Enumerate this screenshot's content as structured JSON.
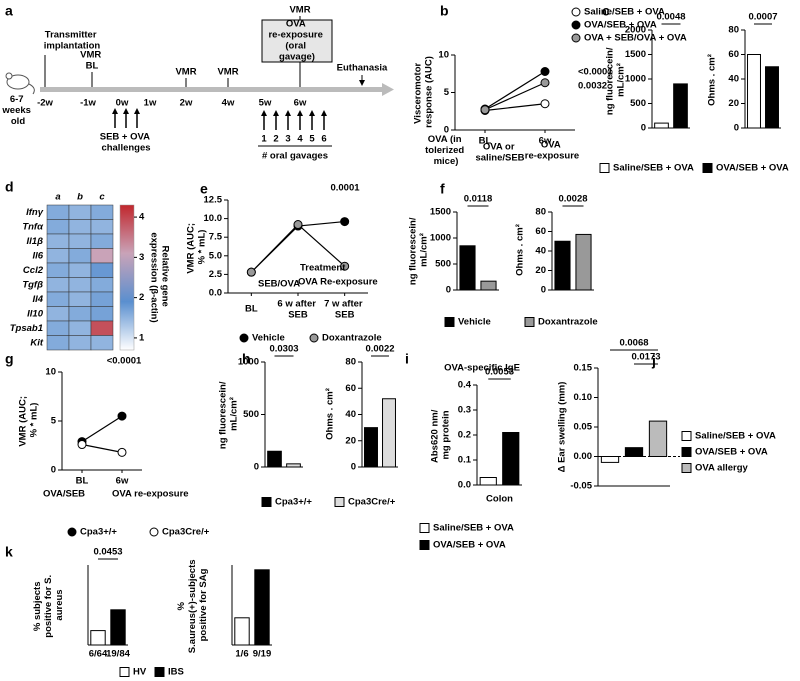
{
  "timeline": {
    "panel": "a",
    "age": "6-7 weeks old",
    "ticks": [
      "-2w",
      "-1w",
      "0w",
      "1w",
      "2w",
      "4w",
      "5w",
      "6w"
    ],
    "events": [
      "Transmitter implantation",
      "VMR BL",
      "VMR",
      "VMR",
      "VMR",
      "Euthanasia"
    ],
    "box": "OVA re-exposure (oral gavage)",
    "challenges": "SEB + OVA challenges",
    "gavages": [
      "1",
      "2",
      "3",
      "4",
      "5",
      "6"
    ],
    "gavage_label": "# oral gavages"
  },
  "chart_data": [
    {
      "type": "line",
      "panel": "b",
      "ylabel": "Visceromotor response (AUC)",
      "categories": [
        "BL",
        "6w"
      ],
      "ylim": [
        0,
        10
      ],
      "yticks": [
        0,
        5,
        10
      ],
      "series": [
        {
          "name": "Saline/SEB + OVA",
          "color": "#ffffff",
          "values": [
            2.6,
            3.5
          ]
        },
        {
          "name": "OVA/SEB + OVA",
          "color": "#000000",
          "values": [
            2.8,
            7.8
          ]
        },
        {
          "name": "OVA + SEB/OVA + OVA",
          "color": "#999999",
          "values": [
            2.7,
            6.3
          ]
        }
      ],
      "annotations": [
        "<0.0001",
        "0.0032",
        "OVA (in tolerized mice)",
        "OVA or saline/SEB",
        "OVA re-exposure"
      ]
    },
    {
      "type": "bar",
      "panel": "c",
      "series": [
        {
          "name": "Saline/SEB + OVA",
          "color": "#ffffff",
          "values": [
            100,
            60
          ]
        },
        {
          "name": "OVA/SEB + OVA",
          "color": "#000000",
          "values": [
            900,
            50
          ]
        }
      ],
      "subplots": [
        {
          "ylabel": "ng fluorescein/ mL/cm²",
          "ylim": [
            0,
            2000
          ],
          "yticks": [
            0,
            500,
            1000,
            1500,
            2000
          ],
          "pvalues": [
            "0.0048"
          ]
        },
        {
          "ylabel": "Ohms . cm²",
          "ylim": [
            0,
            80
          ],
          "yticks": [
            0,
            20,
            40,
            60,
            80
          ],
          "pvalues": [
            "0.0007"
          ]
        }
      ]
    },
    {
      "type": "heatmap",
      "panel": "d",
      "rows": [
        "Ifnγ",
        "Tnfα",
        "Il1β",
        "Il6",
        "Ccl2",
        "Tgfβ",
        "Il4",
        "Il10",
        "Tpsab1",
        "Kit"
      ],
      "columns": [
        "a",
        "b",
        "c"
      ],
      "values": [
        [
          1.6,
          1.5,
          1.6
        ],
        [
          1.6,
          1.5,
          1.5
        ],
        [
          1.5,
          1.5,
          1.6
        ],
        [
          1.5,
          1.6,
          3.1
        ],
        [
          1.6,
          1.5,
          1.8
        ],
        [
          1.5,
          1.5,
          1.6
        ],
        [
          1.6,
          1.5,
          1.7
        ],
        [
          1.5,
          1.6,
          1.7
        ],
        [
          1.6,
          1.5,
          3.9
        ],
        [
          1.6,
          1.5,
          1.5
        ]
      ],
      "zlim": [
        0.7,
        4.3
      ],
      "zticks": [
        1,
        2,
        3,
        4
      ],
      "colors": [
        "#ffffff",
        "#5a8fcf",
        "#c9a3b8",
        "#c1272d"
      ],
      "colorbar_label": "Relative gene expression (β-actin)"
    },
    {
      "type": "line",
      "panel": "e",
      "ylabel": "VMR (AUC; % * mL)",
      "categories": [
        "BL",
        "6 w after SEB",
        "7 w after SEB"
      ],
      "ylim": [
        0,
        12.5
      ],
      "yticks": [
        {
          "value": 0,
          "label": "0.0"
        },
        2.5,
        {
          "value": 5,
          "label": "5.0"
        },
        7.5,
        {
          "value": 10,
          "label": "10.0"
        },
        12.5
      ],
      "series": [
        {
          "name": "Vehicle",
          "color": "#000000",
          "values": [
            2.8,
            9.0,
            9.6
          ]
        },
        {
          "name": "Doxantrazole",
          "color": "#999999",
          "values": [
            2.8,
            9.2,
            3.6
          ]
        }
      ],
      "annotations": [
        "0.0001",
        "SEB/OVA",
        "Treatment",
        "OVA Re-exposure"
      ]
    },
    {
      "type": "bar",
      "panel": "f",
      "series": [
        {
          "name": "Vehicle",
          "color": "#000000",
          "values": [
            850,
            50
          ]
        },
        {
          "name": "Doxantrazole",
          "color": "#999999",
          "values": [
            170,
            57
          ]
        }
      ],
      "subplots": [
        {
          "ylabel": "ng fluorescein/ mL/cm²",
          "ylim": [
            0,
            1500
          ],
          "yticks": [
            0,
            500,
            1000,
            1500
          ],
          "pvalues": [
            "0.0118"
          ]
        },
        {
          "ylabel": "Ohms . cm²",
          "ylim": [
            0,
            80
          ],
          "yticks": [
            0,
            20,
            40,
            60,
            80
          ],
          "pvalues": [
            "0.0028"
          ]
        }
      ]
    },
    {
      "type": "line",
      "panel": "g",
      "ylabel": "VMR (AUC; % * mL)",
      "categories": [
        "BL",
        "6w"
      ],
      "ylim": [
        0,
        10
      ],
      "yticks": [
        0,
        5,
        10
      ],
      "series": [
        {
          "name": "Cpa3+/+",
          "color": "#000000",
          "values": [
            2.9,
            5.5
          ]
        },
        {
          "name": "Cpa3Cre/+",
          "color": "#ffffff",
          "values": [
            2.6,
            1.8
          ]
        }
      ],
      "annotations": [
        "<0.0001",
        "OVA/SEB",
        "OVA re-exposure"
      ]
    },
    {
      "type": "bar",
      "panel": "h",
      "series": [
        {
          "name": "Cpa3+/+",
          "color": "#000000",
          "values": [
            150,
            30
          ]
        },
        {
          "name": "Cpa3Cre/+",
          "color": "#dddddd",
          "values": [
            30,
            52
          ]
        }
      ],
      "subplots": [
        {
          "ylabel": "ng fluorescein/ mL/cm²",
          "ylim": [
            0,
            1000
          ],
          "yticks": [
            0,
            500,
            1000
          ],
          "pvalues": [
            "0.0303"
          ]
        },
        {
          "ylabel": "Ohms . cm²",
          "ylim": [
            0,
            80
          ],
          "yticks": [
            0,
            20,
            40,
            60,
            80
          ],
          "pvalues": [
            "0.0022"
          ]
        }
      ]
    },
    {
      "type": "bar",
      "panel": "i",
      "title": "OVA-specific IgE",
      "series": [
        {
          "name": "Saline/SEB + OVA",
          "color": "#ffffff",
          "values": [
            0.03
          ]
        },
        {
          "name": "OVA/SEB + OVA",
          "color": "#000000",
          "values": [
            0.21
          ]
        }
      ],
      "subplots": [
        {
          "ylabel": "Abs620 nm/ mg protein",
          "ylim": [
            0,
            0.4
          ],
          "yticks": [
            {
              "value": 0,
              "label": "0.0"
            },
            0.1,
            0.2,
            0.3,
            0.4
          ],
          "pvalues": [
            "0.0053"
          ],
          "category": "Colon"
        }
      ]
    },
    {
      "type": "bar",
      "panel": "j",
      "series": [
        {
          "name": "Saline/SEB + OVA",
          "color": "#ffffff",
          "values": [
            -0.01
          ]
        },
        {
          "name": "OVA/SEB + OVA",
          "color": "#000000",
          "values": [
            0.015
          ]
        },
        {
          "name": "OVA allergy",
          "color": "#bbbbbb",
          "values": [
            0.06
          ]
        }
      ],
      "subplots": [
        {
          "ylabel": "Δ Ear swelling (mm)",
          "ylim": [
            -0.05,
            0.15
          ],
          "yticks": [
            -0.05,
            {
              "value": 0,
              "label": "0.00"
            },
            0.05,
            {
              "value": 0.1,
              "label": "0.10"
            },
            0.15
          ],
          "pvalues": [
            "0.0068",
            "0.0173"
          ]
        }
      ]
    },
    {
      "type": "bar",
      "panel": "k",
      "series": [
        {
          "name": "HV",
          "color": "#ffffff",
          "values": [
            9,
            17
          ],
          "n_labels": [
            "6/64",
            "1/6"
          ]
        },
        {
          "name": "IBS",
          "color": "#000000",
          "values": [
            22,
            47
          ],
          "n_labels": [
            "19/84",
            "9/19"
          ]
        }
      ],
      "subplots": [
        {
          "ylabel": "% subjects positive for S. aureus",
          "ylim": [
            0,
            50
          ],
          "pvalues": [
            "0.0453"
          ]
        },
        {
          "ylabel": "% S.aureus(+)-subjects positive for SAg",
          "ylim": [
            0,
            50
          ]
        }
      ]
    }
  ]
}
